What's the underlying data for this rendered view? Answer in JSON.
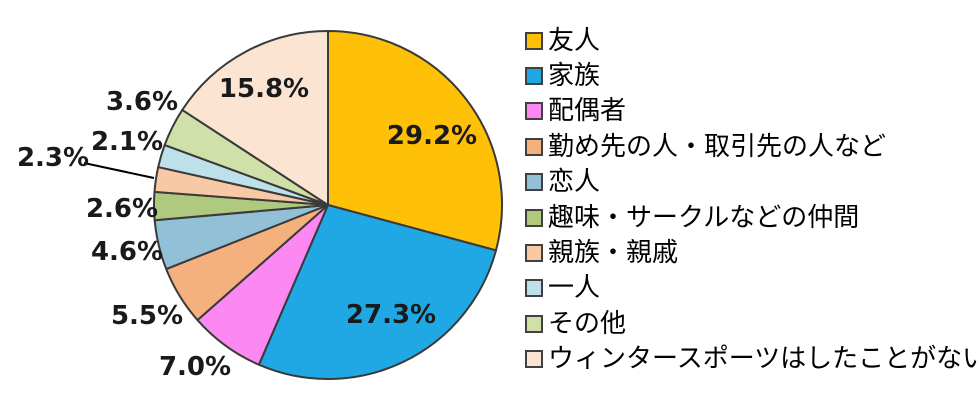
{
  "chart_data": {
    "type": "pie",
    "title": "",
    "start_angle_deg_from_top": 0,
    "direction": "clockwise",
    "legend_position": "right",
    "value_suffix": "%",
    "outline_color": "#3a3a3a",
    "swatch_border_color": "#404040",
    "background_color": "#ffffff",
    "slices": [
      {
        "label": "友人",
        "value": 29.2,
        "color": "#FFC008",
        "label_text": "29.2%",
        "label_placement": "inside"
      },
      {
        "label": "家族",
        "value": 27.3,
        "color": "#20A8E4",
        "label_text": "27.3%",
        "label_placement": "inside"
      },
      {
        "label": "配偶者",
        "value": 7.0,
        "color": "#FC88F2",
        "label_text": "7.0%",
        "label_placement": "outside"
      },
      {
        "label": "勤め先の人・取引先の人など",
        "value": 5.5,
        "color": "#F4B17E",
        "label_text": "5.5%",
        "label_placement": "outside"
      },
      {
        "label": "恋人",
        "value": 4.6,
        "color": "#92C0D6",
        "label_text": "4.6%",
        "label_placement": "outside"
      },
      {
        "label": "趣味・サークルなどの仲間",
        "value": 2.6,
        "color": "#AFC97E",
        "label_text": "2.6%",
        "label_placement": "outside"
      },
      {
        "label": "親族・親戚",
        "value": 2.3,
        "color": "#F8C9A5",
        "label_text": "2.3%",
        "label_placement": "outside-with-leader"
      },
      {
        "label": "一人",
        "value": 2.1,
        "color": "#BEE0EA",
        "label_text": "2.1%",
        "label_placement": "outside"
      },
      {
        "label": "その他",
        "value": 3.6,
        "color": "#CFE0A8",
        "label_text": "3.6%",
        "label_placement": "outside"
      },
      {
        "label": "ウィンタースポーツはしたことがない",
        "value": 15.8,
        "color": "#FBE5D2",
        "label_text": "15.8%",
        "label_placement": "inside"
      }
    ]
  }
}
